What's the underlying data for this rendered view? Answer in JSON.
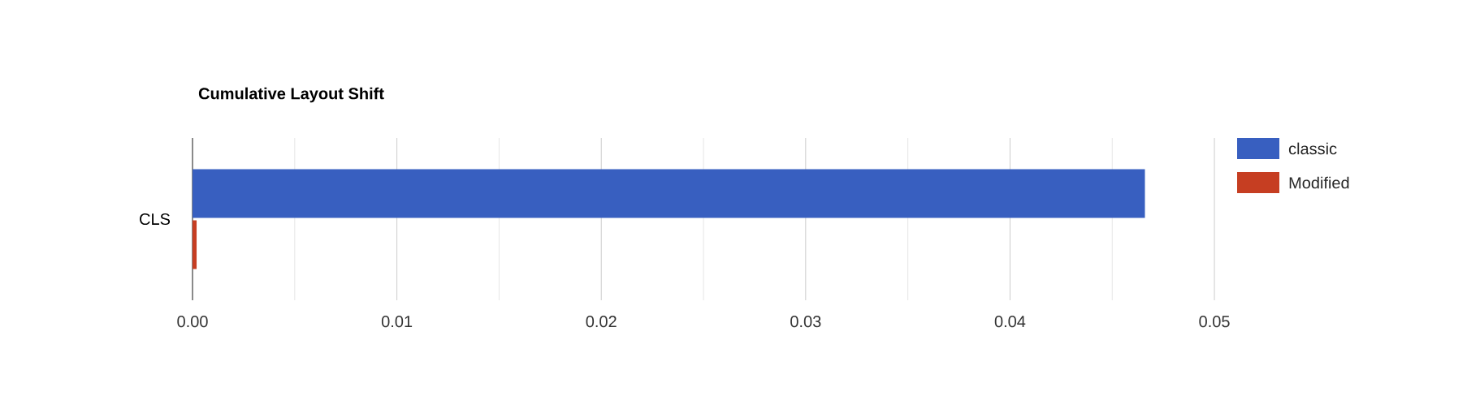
{
  "chart_data": {
    "type": "bar",
    "orientation": "horizontal",
    "title": "Cumulative Layout Shift",
    "categories": [
      "CLS"
    ],
    "series": [
      {
        "name": "classic",
        "color": "#385fc0",
        "values": [
          0.0466
        ]
      },
      {
        "name": "Modified",
        "color": "#c63e22",
        "values": [
          0.0002
        ]
      }
    ],
    "xlim": [
      0,
      0.05
    ],
    "xticks": [
      {
        "value": 0,
        "label": "0.00"
      },
      {
        "value": 0.005,
        "label": null
      },
      {
        "value": 0.01,
        "label": "0.01"
      },
      {
        "value": 0.015,
        "label": null
      },
      {
        "value": 0.02,
        "label": "0.02"
      },
      {
        "value": 0.025,
        "label": null
      },
      {
        "value": 0.03,
        "label": "0.03"
      },
      {
        "value": 0.035,
        "label": null
      },
      {
        "value": 0.04,
        "label": "0.04"
      },
      {
        "value": 0.045,
        "label": null
      },
      {
        "value": 0.05,
        "label": "0.05"
      }
    ],
    "grid": "x",
    "legend": "right"
  }
}
